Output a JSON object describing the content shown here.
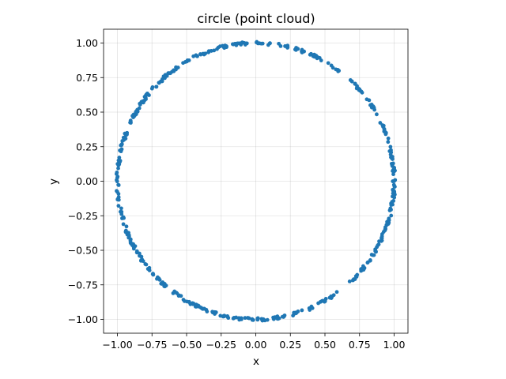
{
  "chart_data": {
    "type": "scatter",
    "title": "circle (point cloud)",
    "xlabel": "x",
    "ylabel": "y",
    "xlim": [
      -1.1,
      1.1
    ],
    "ylim": [
      -1.1,
      1.1
    ],
    "grid": true,
    "aspect": "equal",
    "xticks": [
      -1.0,
      -0.75,
      -0.5,
      -0.25,
      0.0,
      0.25,
      0.5,
      0.75,
      1.0
    ],
    "yticks": [
      -1.0,
      -0.75,
      -0.5,
      -0.25,
      0.0,
      0.25,
      0.5,
      0.75,
      1.0
    ],
    "xtick_labels": [
      "−1.00",
      "−0.75",
      "−0.50",
      "−0.25",
      "0.00",
      "0.25",
      "0.50",
      "0.75",
      "1.00"
    ],
    "ytick_labels": [
      "−1.00",
      "−0.75",
      "−0.50",
      "−0.25",
      "0.00",
      "0.25",
      "0.50",
      "0.75",
      "1.00"
    ],
    "marker_color": "#1f77b4",
    "point_count": 500,
    "series": [
      {
        "shape": "circle",
        "center": [
          0,
          0
        ],
        "radius": 1.0,
        "noise": 0.01,
        "gaps_deg": [
          [
            47,
            53
          ],
          [
            307,
            313
          ],
          [
            122,
            124
          ],
          [
            230,
            233
          ]
        ]
      }
    ]
  }
}
